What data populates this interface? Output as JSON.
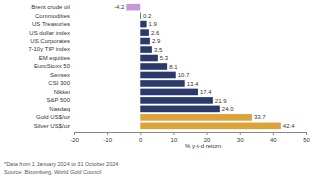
{
  "chart_data": {
    "type": "bar",
    "orientation": "horizontal",
    "categories": [
      "Brent crude oil",
      "Commodities",
      "US Treasuries",
      "US dollar index",
      "US Corporates",
      "7-10y TIP index",
      "EM equities",
      "EuroStoxx 50",
      "Sensex",
      "CSI 300",
      "Nikkei",
      "S&P 500",
      "Nasdaq",
      "Gold US$/oz",
      "Silver US$/oz"
    ],
    "values": [
      -4.2,
      0.2,
      1.9,
      2.6,
      2.9,
      3.5,
      5.3,
      8.1,
      10.7,
      13.4,
      17.4,
      21.9,
      24.0,
      33.7,
      42.4
    ],
    "value_labels": [
      "-4.2",
      "0.2",
      "1.9",
      "2.6",
      "2.9",
      "3.5",
      "5.3",
      "8.1",
      "10.7",
      "13.4",
      "17.4",
      "21.9",
      "24.0",
      "33.7",
      "42.4"
    ],
    "colors": [
      "#c49ad6",
      "#2b3a6b",
      "#2b3a6b",
      "#2b3a6b",
      "#2b3a6b",
      "#2b3a6b",
      "#2b3a6b",
      "#2b3a6b",
      "#2b3a6b",
      "#2b3a6b",
      "#2b3a6b",
      "#2b3a6b",
      "#2b3a6b",
      "#dda33b",
      "#dda33b"
    ],
    "xlim": [
      -20,
      50
    ],
    "xticks": [
      -20,
      -10,
      0,
      10,
      20,
      30,
      40,
      50
    ],
    "x_label": "% y-t-d return",
    "annotations": [
      "*Data from 1 January 2024 to 31 October 2024",
      "Source: Bloomberg, World Gold Council"
    ],
    "data_labels": true,
    "grid": false
  }
}
